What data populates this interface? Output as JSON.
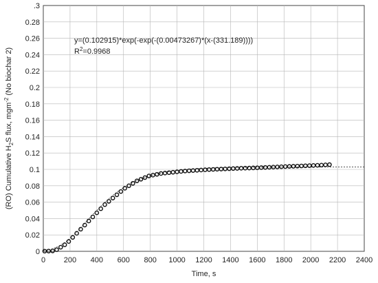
{
  "chart_data": {
    "type": "scatter",
    "xlabel": "Time, s",
    "ylabel": {
      "prefix": "(RO) Cumulative H",
      "sub": "2",
      "mid": "S flux, mgm",
      "sup": "-2",
      "suffix": " (No biochar 2)"
    },
    "xlim": [
      0,
      2400
    ],
    "ylim": [
      0,
      0.3
    ],
    "xticks": [
      "0",
      "200",
      "400",
      "600",
      "800",
      "1000",
      "1200",
      "1400",
      "1600",
      "1800",
      "2000",
      "2200",
      "2400"
    ],
    "yticks": [
      "0",
      "0.02",
      "0.04",
      "0.06",
      "0.08",
      "0.1",
      "0.12",
      "0.14",
      "0.16",
      "0.18",
      "0.2",
      "0.22",
      "0.24",
      "0.26",
      "0.28",
      ".3"
    ],
    "grid": true,
    "equation": "y=(0.102915)*exp(-exp(-(0.00473267)*(x-(331.189))))",
    "r2": {
      "base": "R",
      "sup": "2",
      "rest": "=0.9968"
    },
    "fit": {
      "a": 0.102915,
      "k": 0.00473267,
      "x0": 331.189,
      "x_start": 0,
      "x_end": 2400
    },
    "series": [
      {
        "marker": "open-circle",
        "x": [
          10,
          40,
          70,
          100,
          130,
          160,
          190,
          220,
          250,
          280,
          310,
          340,
          370,
          400,
          430,
          460,
          490,
          520,
          550,
          580,
          610,
          640,
          670,
          700,
          730,
          760,
          790,
          820,
          850,
          880,
          910,
          940,
          970,
          1000,
          1030,
          1060,
          1090,
          1120,
          1150,
          1180,
          1210,
          1240,
          1270,
          1300,
          1330,
          1360,
          1390,
          1420,
          1450,
          1480,
          1510,
          1540,
          1570,
          1600,
          1630,
          1660,
          1690,
          1720,
          1750,
          1780,
          1810,
          1840,
          1870,
          1900,
          1930,
          1960,
          1990,
          2020,
          2050,
          2080,
          2110,
          2140
        ],
        "y": [
          0.0002,
          0.0003,
          0.0005,
          0.002,
          0.005,
          0.008,
          0.012,
          0.017,
          0.022,
          0.027,
          0.032,
          0.037,
          0.042,
          0.047,
          0.052,
          0.057,
          0.061,
          0.065,
          0.069,
          0.073,
          0.077,
          0.08,
          0.083,
          0.086,
          0.088,
          0.09,
          0.092,
          0.093,
          0.094,
          0.095,
          0.0955,
          0.096,
          0.0965,
          0.097,
          0.0975,
          0.098,
          0.0983,
          0.0986,
          0.0989,
          0.0992,
          0.0995,
          0.0998,
          0.1,
          0.1002,
          0.1004,
          0.1006,
          0.1008,
          0.101,
          0.1012,
          0.1014,
          0.1015,
          0.1016,
          0.1018,
          0.102,
          0.1022,
          0.1024,
          0.1026,
          0.1028,
          0.103,
          0.1032,
          0.1034,
          0.1036,
          0.1038,
          0.104,
          0.1042,
          0.1044,
          0.1046,
          0.1048,
          0.105,
          0.1052,
          0.1055,
          0.1058
        ]
      }
    ]
  }
}
